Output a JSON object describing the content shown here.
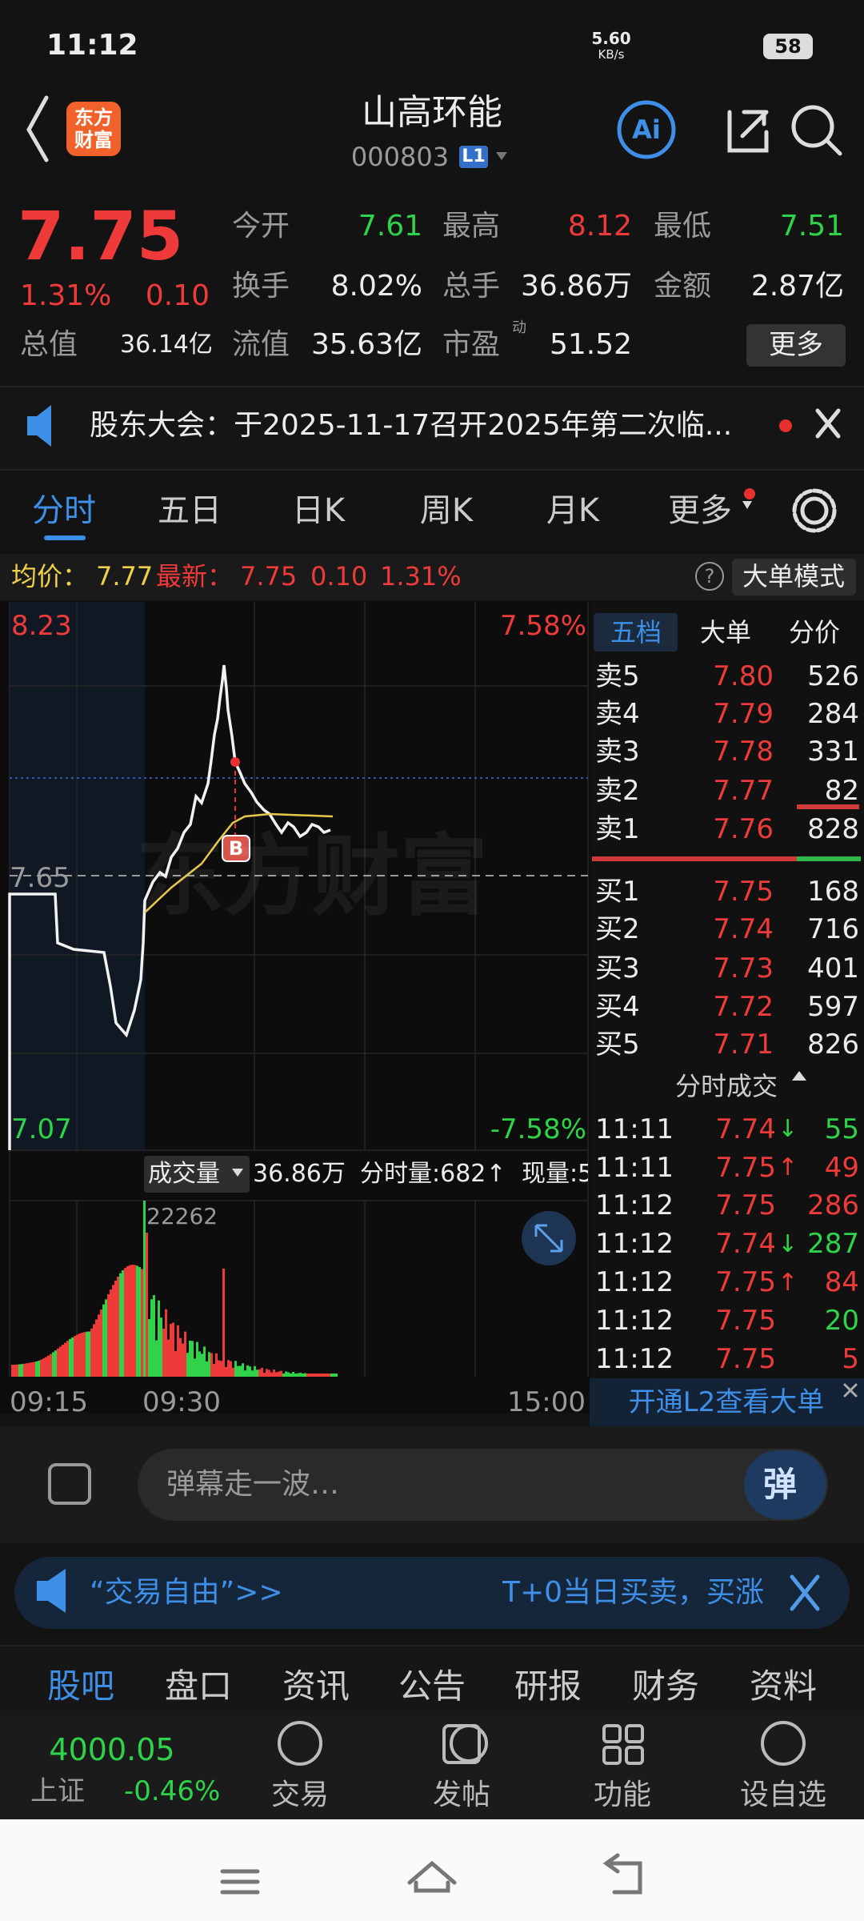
{
  "status_bar": {
    "time": "11:12",
    "net_speed": "5.60",
    "net_unit": "KB/s",
    "battery": "58"
  },
  "header": {
    "logo": "东方财富",
    "title": "山高环能",
    "code": "000803",
    "level": "L1",
    "ai": "Ai"
  },
  "quote": {
    "price": "7.75",
    "change_pct": "1.31%",
    "change": "0.10",
    "total_value_label": "总值",
    "total_value": "36.14亿",
    "pe_sup": "动",
    "more": "更多",
    "fields": [
      {
        "label": "今开",
        "value": "7.61",
        "tone": "down"
      },
      {
        "label": "最高",
        "value": "8.12",
        "tone": "up"
      },
      {
        "label": "最低",
        "value": "7.51",
        "tone": "down"
      },
      {
        "label": "换手",
        "value": "8.02%",
        "tone": "flat"
      },
      {
        "label": "总手",
        "value": "36.86万",
        "tone": "flat"
      },
      {
        "label": "金额",
        "value": "2.87亿",
        "tone": "flat"
      },
      {
        "label": "流值",
        "value": "35.63亿",
        "tone": "flat"
      },
      {
        "label": "市盈",
        "value": "51.52",
        "tone": "flat"
      }
    ]
  },
  "notice": "股东大会：于2025-11-17召开2025年第二次临...",
  "tabs": [
    "分时",
    "五日",
    "日K",
    "周K",
    "月K",
    "更多"
  ],
  "info": {
    "avg_label": "均价：",
    "avg": "7.77",
    "latest_label": "最新：",
    "latest": "7.75",
    "change": "0.10",
    "change_pct": "1.31%",
    "help": "?",
    "mode": "大单模式"
  },
  "chart": {
    "high": "8.23",
    "high_pct": "7.58%",
    "low": "7.07",
    "low_pct": "-7.58%",
    "pre_close": "7.65",
    "buy_marker": "B",
    "watermark": "东方财富"
  },
  "volume": {
    "label": "成交量",
    "total": "36.86万",
    "tick_volume": "分时量:682↑",
    "current": "现量:5",
    "max": "22262"
  },
  "time_axis": [
    "09:15",
    "09:30",
    "15:00"
  ],
  "order_book": {
    "tabs": [
      "五档",
      "大单",
      "分价"
    ],
    "asks": [
      {
        "label": "卖5",
        "price": "7.80",
        "volume": "526"
      },
      {
        "label": "卖4",
        "price": "7.79",
        "volume": "284"
      },
      {
        "label": "卖3",
        "price": "7.78",
        "volume": "331"
      },
      {
        "label": "卖2",
        "price": "7.77",
        "volume": "82"
      },
      {
        "label": "卖1",
        "price": "7.76",
        "volume": "828"
      }
    ],
    "bids": [
      {
        "label": "买1",
        "price": "7.75",
        "volume": "168"
      },
      {
        "label": "买2",
        "price": "7.74",
        "volume": "716"
      },
      {
        "label": "买3",
        "price": "7.73",
        "volume": "401"
      },
      {
        "label": "买4",
        "price": "7.72",
        "volume": "597"
      },
      {
        "label": "买5",
        "price": "7.71",
        "volume": "826"
      }
    ]
  },
  "trades": {
    "title": "分时成交",
    "l2": "开通L2查看大单",
    "rows": [
      {
        "time": "11:11",
        "price": "7.74",
        "dir": "↓",
        "volume": "55",
        "side": "sell"
      },
      {
        "time": "11:11",
        "price": "7.75",
        "dir": "↑",
        "volume": "49",
        "side": "buy"
      },
      {
        "time": "11:12",
        "price": "7.75",
        "volume": "286",
        "side": "buy"
      },
      {
        "time": "11:12",
        "price": "7.74",
        "dir": "↓",
        "volume": "287",
        "side": "sell"
      },
      {
        "time": "11:12",
        "price": "7.75",
        "dir": "↑",
        "volume": "84",
        "side": "buy"
      },
      {
        "time": "11:12",
        "price": "7.75",
        "volume": "20",
        "side": "sell"
      },
      {
        "time": "11:12",
        "price": "7.75",
        "volume": "5",
        "side": "buy"
      }
    ]
  },
  "comment": {
    "placeholder": "弹幕走一波…",
    "button": "弹"
  },
  "banner": {
    "left": "“交易自由”>>",
    "right": "T+0当日买卖，买涨"
  },
  "bottom_tabs": [
    "股吧",
    "盘口",
    "资讯",
    "公告",
    "研报",
    "财务",
    "资料"
  ],
  "index": {
    "value": "4000.05",
    "name": "上证",
    "change": "-0.46%"
  },
  "nav": [
    "交易",
    "发帖",
    "功能",
    "设自选"
  ]
}
